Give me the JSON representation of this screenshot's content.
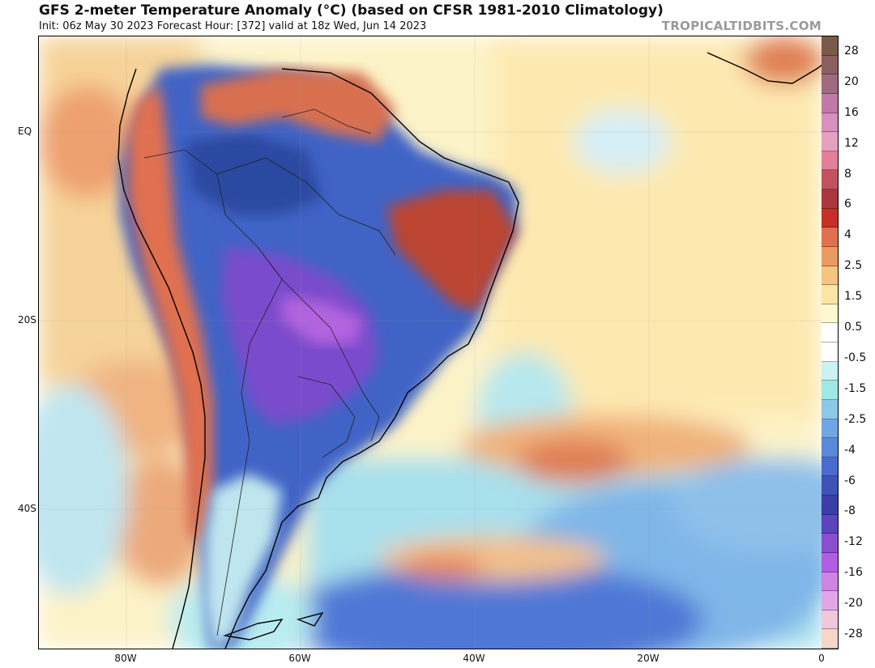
{
  "header": {
    "title": "GFS 2-meter Temperature Anomaly (°C) (based on CFSR 1981-2010 Climatology)",
    "subtitle": "Init: 06z May 30 2023   Forecast Hour: [372]   valid at 18z Wed, Jun 14 2023",
    "credit": "TROPICALTIDBITS.COM"
  },
  "map": {
    "latitude_labels": [
      "EQ",
      "20S",
      "40S"
    ],
    "longitude_labels": [
      "80W",
      "60W",
      "40W",
      "20W",
      "0"
    ],
    "anomaly_regions": [
      {
        "region": "south-america-interior",
        "anomaly_c": -12
      },
      {
        "region": "northeast-brazil",
        "anomaly_c": 6
      },
      {
        "region": "south-atlantic",
        "anomaly_c": -2.5
      },
      {
        "region": "equatorial-atlantic",
        "anomaly_c": 1.5
      },
      {
        "region": "southeast-pacific",
        "anomaly_c": 2.5
      }
    ]
  },
  "colorbar": {
    "labels": [
      "28",
      "20",
      "16",
      "12",
      "8",
      "6",
      "4",
      "2.5",
      "1.5",
      "0.5",
      "-0.5",
      "-1.5",
      "-2.5",
      "-4",
      "-6",
      "-8",
      "-12",
      "-16",
      "-20",
      "-28"
    ],
    "colors": [
      "#7a5a48",
      "#8a5f5f",
      "#a06a80",
      "#c07aa8",
      "#d890c0",
      "#e6a0c0",
      "#e27f9a",
      "#c35261",
      "#a83740",
      "#c6302a",
      "#e07050",
      "#eb9a62",
      "#f3c57e",
      "#fbe5a6",
      "#fef8cf",
      "#ffffff",
      "#ffffff",
      "#c9f2f2",
      "#9ee8e6",
      "#8cc8e8",
      "#6fa6e6",
      "#5a88da",
      "#4a6ad0",
      "#3e52b8",
      "#3b3fa5",
      "#5a45bd",
      "#8a4fd0",
      "#b35ee0",
      "#cf84e4",
      "#e2a6e8",
      "#f0c8dc",
      "#f6d6c8"
    ]
  }
}
